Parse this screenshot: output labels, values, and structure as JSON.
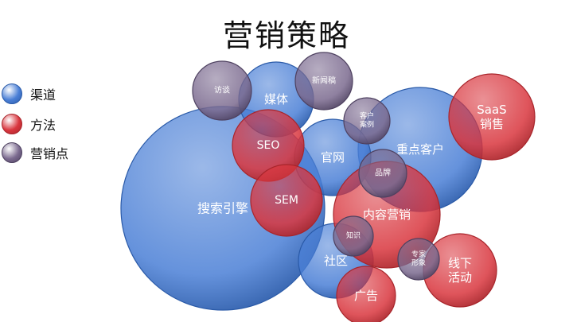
{
  "title": "营销策略",
  "legend": [
    {
      "label": "渠道",
      "color": "#4a7fd6",
      "edge": "#2a5aa8"
    },
    {
      "label": "方法",
      "color": "#d9363e",
      "edge": "#a8252b"
    },
    {
      "label": "营销点",
      "color": "#7b6a8f",
      "edge": "#4e4160"
    }
  ],
  "bubbles": [
    {
      "id": "search",
      "lines": [
        "搜索引擎"
      ],
      "category": "渠道"
    },
    {
      "id": "media",
      "lines": [
        "媒体"
      ],
      "category": "渠道"
    },
    {
      "id": "official",
      "lines": [
        "官网"
      ],
      "category": "渠道"
    },
    {
      "id": "key",
      "lines": [
        "重点客户"
      ],
      "category": "渠道"
    },
    {
      "id": "community",
      "lines": [
        "社区"
      ],
      "category": "渠道"
    },
    {
      "id": "content",
      "lines": [
        "内容营销"
      ],
      "category": "方法"
    },
    {
      "id": "seo",
      "lines": [
        "SEO"
      ],
      "category": "方法"
    },
    {
      "id": "sem",
      "lines": [
        "SEM"
      ],
      "category": "方法"
    },
    {
      "id": "saas",
      "lines": [
        "SaaS",
        "销售"
      ],
      "category": "方法"
    },
    {
      "id": "offline",
      "lines": [
        "线下",
        "活动"
      ],
      "category": "方法"
    },
    {
      "id": "ad",
      "lines": [
        "广告"
      ],
      "category": "方法"
    },
    {
      "id": "interview",
      "lines": [
        "访谈"
      ],
      "category": "营销点"
    },
    {
      "id": "press",
      "lines": [
        "新闻稿"
      ],
      "category": "营销点"
    },
    {
      "id": "cases",
      "lines": [
        "客户",
        "案例"
      ],
      "category": "营销点"
    },
    {
      "id": "brand",
      "lines": [
        "品牌"
      ],
      "category": "营销点"
    },
    {
      "id": "knowledge",
      "lines": [
        "知识"
      ],
      "category": "营销点"
    },
    {
      "id": "expert",
      "lines": [
        "专家",
        "形象"
      ],
      "category": "营销点"
    }
  ]
}
